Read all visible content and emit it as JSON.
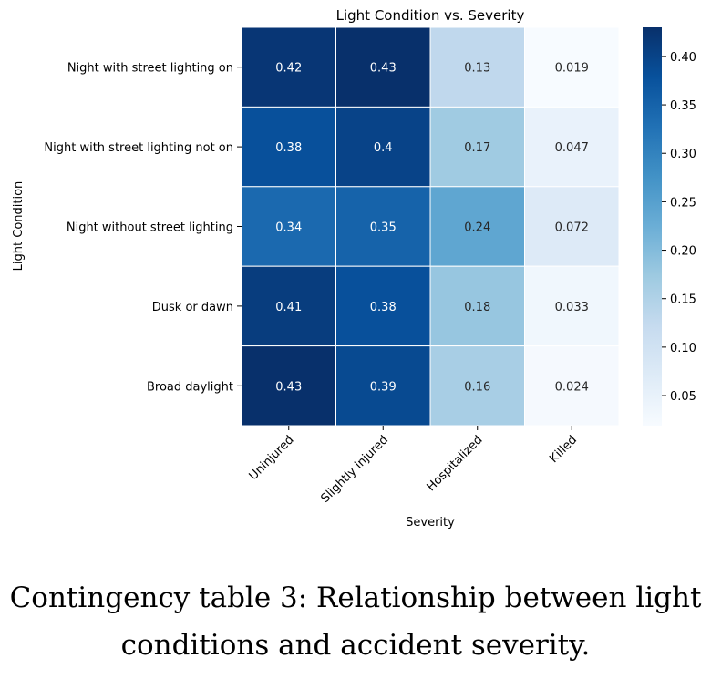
{
  "caption": "Contingency table 3: Relationship between light conditions and accident severity.",
  "chart_data": {
    "type": "heatmap",
    "title": "Light Condition vs. Severity",
    "xlabel": "Severity",
    "ylabel": "Light Condition",
    "x_categories": [
      "Uninjured",
      "Slightly injured",
      "Hospitalized",
      "Killed"
    ],
    "y_categories": [
      "Night with street lighting on",
      "Night with street lighting not on",
      "Night without street lighting",
      "Dusk or dawn",
      "Broad daylight"
    ],
    "values": [
      [
        0.42,
        0.43,
        0.13,
        0.019
      ],
      [
        0.38,
        0.4,
        0.17,
        0.047
      ],
      [
        0.34,
        0.35,
        0.24,
        0.072
      ],
      [
        0.41,
        0.38,
        0.18,
        0.033
      ],
      [
        0.43,
        0.39,
        0.16,
        0.024
      ]
    ],
    "value_labels": [
      [
        "0.42",
        "0.43",
        "0.13",
        "0.019"
      ],
      [
        "0.38",
        "0.4",
        "0.17",
        "0.047"
      ],
      [
        "0.34",
        "0.35",
        "0.24",
        "0.072"
      ],
      [
        "0.41",
        "0.38",
        "0.18",
        "0.033"
      ],
      [
        "0.43",
        "0.39",
        "0.16",
        "0.024"
      ]
    ],
    "colormap": "Blues",
    "colorbar": {
      "range": [
        0.019,
        0.43
      ],
      "ticks": [
        0.05,
        0.1,
        0.15,
        0.2,
        0.25,
        0.3,
        0.35,
        0.4
      ],
      "tick_labels": [
        "0.05",
        "0.10",
        "0.15",
        "0.20",
        "0.25",
        "0.30",
        "0.35",
        "0.40"
      ]
    }
  }
}
